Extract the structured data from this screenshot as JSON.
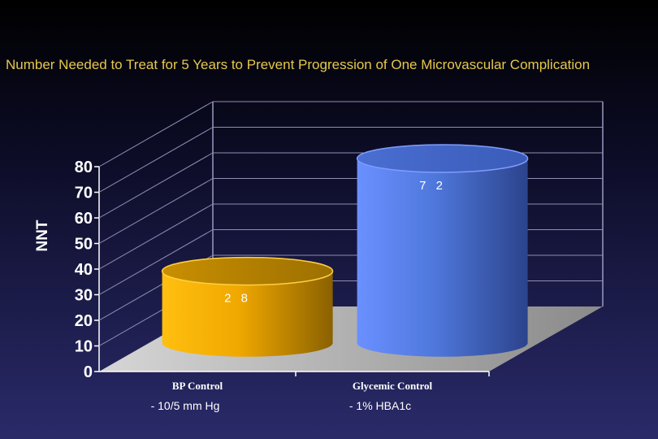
{
  "chart_data": {
    "type": "bar",
    "title": "Number Needed to Treat for 5 Years to Prevent Progression of One Microvascular Complication",
    "ylabel": "NNT",
    "xlabel": "",
    "categories": [
      "BP Control",
      "Glycemic Control"
    ],
    "values": [
      28,
      72
    ],
    "data_labels": [
      "2 8",
      "7 2"
    ],
    "notes": [
      "- 10/5 mm Hg",
      "- 1% HBA1c"
    ],
    "ylim": [
      0,
      80
    ],
    "yticks": [
      0,
      10,
      20,
      30,
      40,
      50,
      60,
      70,
      80
    ],
    "grid": true,
    "legend": "none",
    "colors": [
      "#f0a800",
      "#4f78dc"
    ]
  }
}
